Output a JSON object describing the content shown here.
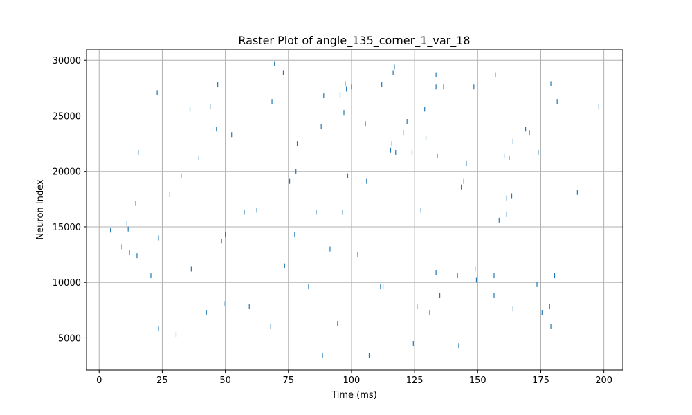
{
  "chart_data": {
    "type": "scatter",
    "marker": "vertical-line",
    "title": "Raster Plot of angle_135_corner_1_var_18",
    "xlabel": "Time (ms)",
    "ylabel": "Neuron Index",
    "xlim": [
      -5,
      207.5
    ],
    "ylim": [
      2100,
      30950
    ],
    "xticks": [
      0,
      25,
      50,
      75,
      100,
      125,
      150,
      175,
      200
    ],
    "yticks": [
      5000,
      10000,
      15000,
      20000,
      25000,
      30000
    ],
    "grid": true,
    "color": "#1f77b4",
    "series": [
      {
        "x": [
          4.5,
          9,
          11,
          11.5,
          12,
          14.5,
          15,
          15.5,
          20.5,
          23,
          23.5,
          23.5,
          28,
          30.5,
          32.5,
          36,
          36.5,
          39.5,
          42.5,
          44,
          46.5,
          47,
          48.5,
          49.5,
          50,
          52.5,
          57.5,
          59.5,
          62.5,
          68,
          68.5,
          69.5,
          73,
          73.5,
          75.5,
          77.5,
          78,
          78.5,
          83,
          86,
          88,
          88.5,
          89,
          91.5,
          94.5,
          95.5,
          96.5,
          97,
          97.5,
          98,
          98.5,
          100,
          102.5,
          105.5,
          106,
          107,
          111.5,
          112,
          112.5,
          115.5,
          116,
          116.5,
          117,
          117.5,
          120.5,
          122,
          124,
          124.5,
          126,
          127.5,
          129,
          129.5,
          131,
          133.5,
          133.5,
          133.5,
          134,
          135,
          136.5,
          142,
          142.5,
          143.5,
          144.5,
          145.5,
          148.5,
          149,
          149.5,
          156.5,
          156.5,
          157,
          158.5,
          160.5,
          161.5,
          161.5,
          162.5,
          163.5,
          164,
          164,
          169,
          170.5,
          173.5,
          174,
          175.5,
          178.5,
          179,
          179,
          180.5,
          181.5,
          189.5,
          198
        ],
        "y": [
          14700,
          13200,
          15300,
          14800,
          12700,
          17100,
          12400,
          21700,
          10600,
          27100,
          14000,
          5800,
          17900,
          5300,
          19600,
          25600,
          11200,
          21200,
          7300,
          25800,
          23800,
          27800,
          13700,
          8100,
          14300,
          23300,
          16300,
          7800,
          16500,
          6000,
          26300,
          29700,
          28900,
          11500,
          19100,
          14300,
          20000,
          22500,
          9600,
          16300,
          24000,
          3400,
          26800,
          13000,
          6300,
          26900,
          16300,
          25300,
          27900,
          27400,
          19600,
          27600,
          12500,
          24300,
          19100,
          3400,
          9600,
          27800,
          9600,
          21900,
          22500,
          28900,
          29400,
          21700,
          23500,
          24500,
          21700,
          4500,
          7800,
          16500,
          25600,
          23000,
          7300,
          27600,
          10900,
          28700,
          21400,
          8800,
          27600,
          10600,
          4300,
          18600,
          19100,
          20700,
          27600,
          11200,
          10200,
          8800,
          10600,
          28700,
          15600,
          21400,
          16100,
          17600,
          21200,
          17800,
          22700,
          7600,
          23800,
          23500,
          9800,
          21700,
          7300,
          7800,
          27900,
          6000,
          10600,
          26300,
          18100,
          25800
        ]
      }
    ]
  }
}
